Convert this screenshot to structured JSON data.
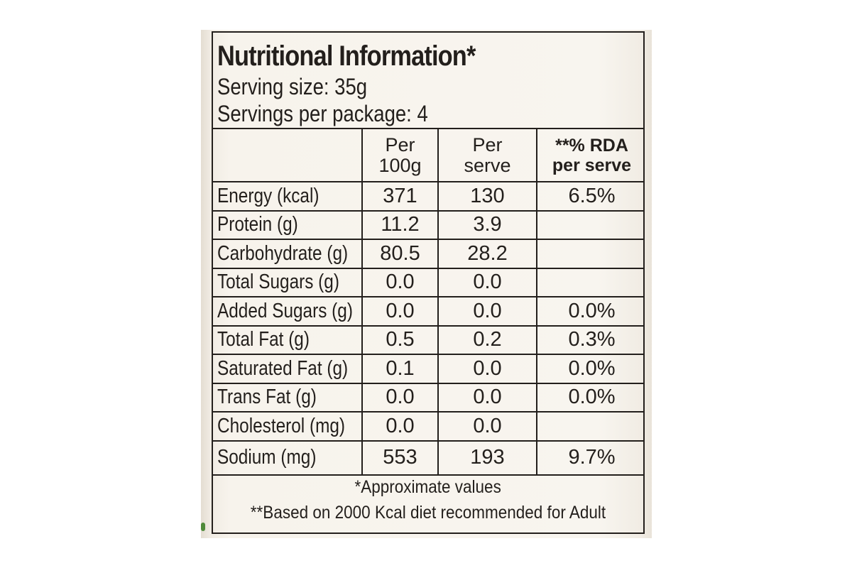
{
  "label": {
    "title": "Nutritional Information*",
    "serving_size": "Serving size: 35g",
    "servings_per_package": "Servings per package: 4"
  },
  "table": {
    "headers": [
      "",
      "Per\n100g",
      "Per\nserve",
      "**% RDA\nper serve"
    ],
    "rows": [
      {
        "nutrient": "Energy (kcal)",
        "per_100g": "371",
        "per_serve": "130",
        "rda": "6.5%"
      },
      {
        "nutrient": "Protein (g)",
        "per_100g": "11.2",
        "per_serve": "3.9",
        "rda": ""
      },
      {
        "nutrient": "Carbohydrate (g)",
        "per_100g": "80.5",
        "per_serve": "28.2",
        "rda": ""
      },
      {
        "nutrient": "Total Sugars (g)",
        "per_100g": "0.0",
        "per_serve": "0.0",
        "rda": ""
      },
      {
        "nutrient": "Added Sugars (g)",
        "per_100g": "0.0",
        "per_serve": "0.0",
        "rda": "0.0%"
      },
      {
        "nutrient": "Total Fat (g)",
        "per_100g": "0.5",
        "per_serve": "0.2",
        "rda": "0.3%"
      },
      {
        "nutrient": "Saturated Fat (g)",
        "per_100g": "0.1",
        "per_serve": "0.0",
        "rda": "0.0%"
      },
      {
        "nutrient": "Trans Fat (g)",
        "per_100g": "0.0",
        "per_serve": "0.0",
        "rda": "0.0%"
      },
      {
        "nutrient": "Cholesterol (mg)",
        "per_100g": "0.0",
        "per_serve": "0.0",
        "rda": ""
      },
      {
        "nutrient": "Sodium (mg)",
        "per_100g": "553",
        "per_serve": "193",
        "rda": "9.7%"
      }
    ]
  },
  "footnotes": {
    "approx": "*Approximate values",
    "rda_basis": "**Based on 2000 Kcal diet recommended for Adult"
  },
  "colors": {
    "ink": "#231f1c",
    "paper": "#f8f5ef",
    "background": "#ffffff"
  }
}
